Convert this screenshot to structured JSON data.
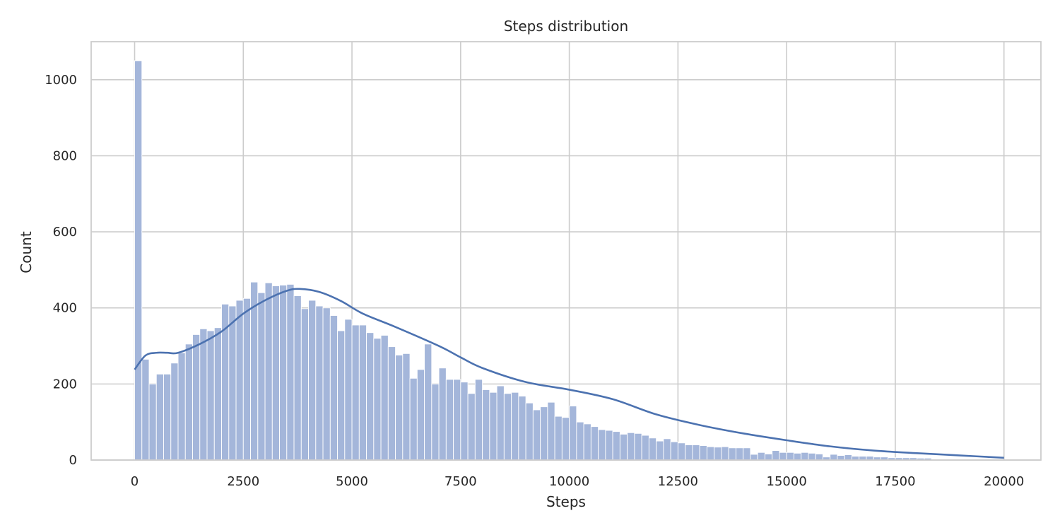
{
  "chart_data": {
    "type": "bar",
    "title": "Steps distribution",
    "xlabel": "Steps",
    "ylabel": "Count",
    "xlim": [
      -1000,
      20850
    ],
    "ylim": [
      0,
      1100
    ],
    "grid": true,
    "colors": {
      "bar_fill": "#a4b6da",
      "bar_edge": "#ffffff",
      "kde": "#4c72b0",
      "grid": "#cccccc",
      "frame": "#cccccc"
    },
    "bins": {
      "start": 0,
      "width": 166.67,
      "counts": [
        1050,
        265,
        200,
        226,
        226,
        255,
        282,
        305,
        330,
        345,
        340,
        348,
        410,
        405,
        420,
        425,
        468,
        440,
        466,
        458,
        460,
        462,
        432,
        398,
        420,
        405,
        400,
        380,
        340,
        370,
        355,
        355,
        335,
        320,
        328,
        298,
        276,
        280,
        215,
        238,
        305,
        200,
        242,
        212,
        212,
        205,
        175,
        212,
        185,
        178,
        195,
        175,
        178,
        168,
        150,
        132,
        140,
        152,
        115,
        112,
        142,
        100,
        95,
        88,
        80,
        78,
        75,
        68,
        72,
        70,
        65,
        58,
        50,
        56,
        48,
        45,
        40,
        40,
        38,
        35,
        34,
        35,
        32,
        32,
        32,
        15,
        20,
        16,
        25,
        20,
        20,
        18,
        20,
        18,
        16,
        8,
        15,
        12,
        14,
        10,
        10,
        10,
        8,
        8,
        6,
        6,
        6,
        6,
        5,
        5
      ]
    },
    "kde": {
      "x": [
        0,
        250,
        500,
        750,
        1000,
        1500,
        2000,
        2500,
        3000,
        3500,
        3800,
        4250,
        4750,
        5250,
        6000,
        7000,
        7500,
        8000,
        9000,
        10000,
        11000,
        12000,
        13000,
        14000,
        15000,
        16000,
        17000,
        18000,
        19000,
        20000
      ],
      "y": [
        238,
        275,
        282,
        282,
        282,
        305,
        338,
        385,
        420,
        445,
        450,
        442,
        418,
        385,
        350,
        300,
        270,
        242,
        205,
        185,
        160,
        120,
        92,
        70,
        52,
        36,
        25,
        18,
        12,
        6
      ]
    },
    "x_ticks": [
      0,
      2500,
      5000,
      7500,
      10000,
      12500,
      15000,
      17500,
      20000
    ],
    "x_tick_labels": [
      "0",
      "2500",
      "5000",
      "7500",
      "10000",
      "12500",
      "15000",
      "17500",
      "20000"
    ],
    "y_ticks": [
      0,
      200,
      400,
      600,
      800,
      1000
    ],
    "y_tick_labels": [
      "0",
      "200",
      "400",
      "600",
      "800",
      "1000"
    ]
  }
}
